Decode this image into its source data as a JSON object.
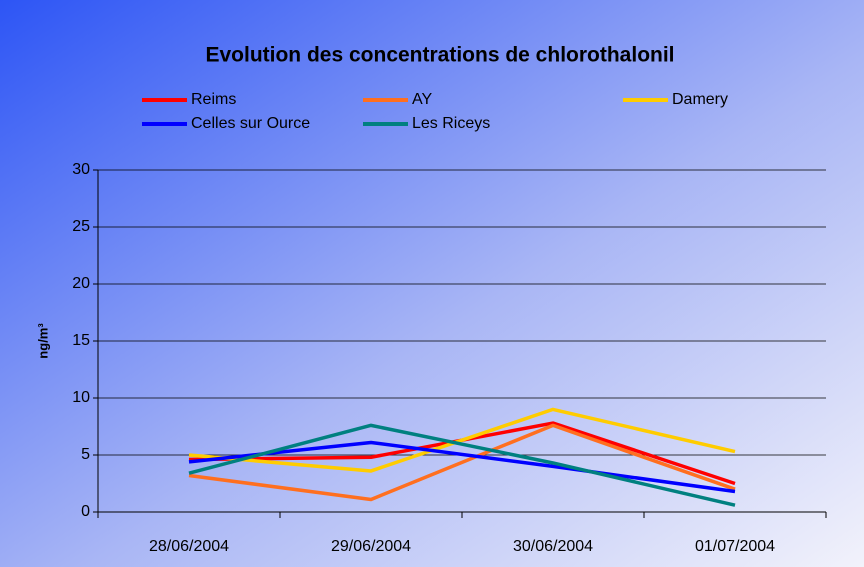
{
  "chart_data": {
    "type": "line",
    "title": "Evolution des concentrations de chlorothalonil",
    "y_label": "ng/m³",
    "categories": [
      "28/06/2004",
      "29/06/2004",
      "30/06/2004",
      "01/07/2004"
    ],
    "series": [
      {
        "name": "Reims",
        "color": "#ff0000",
        "values": [
          4.6,
          4.8,
          7.8,
          2.5
        ]
      },
      {
        "name": "AY",
        "color": "#ff6f1f",
        "values": [
          3.2,
          1.1,
          7.6,
          2.0
        ]
      },
      {
        "name": "Damery",
        "color": "#ffcc00",
        "values": [
          5.0,
          3.6,
          9.0,
          5.3
        ]
      },
      {
        "name": "Celles sur Ource",
        "color": "#0000ff",
        "values": [
          4.4,
          6.1,
          4.0,
          1.8
        ]
      },
      {
        "name": "Les Riceys",
        "color": "#008080",
        "values": [
          3.4,
          7.6,
          4.3,
          0.6
        ]
      }
    ],
    "ylim": [
      0,
      30
    ],
    "yticks": [
      0,
      5,
      10,
      15,
      20,
      25,
      30
    ],
    "grid": true
  }
}
